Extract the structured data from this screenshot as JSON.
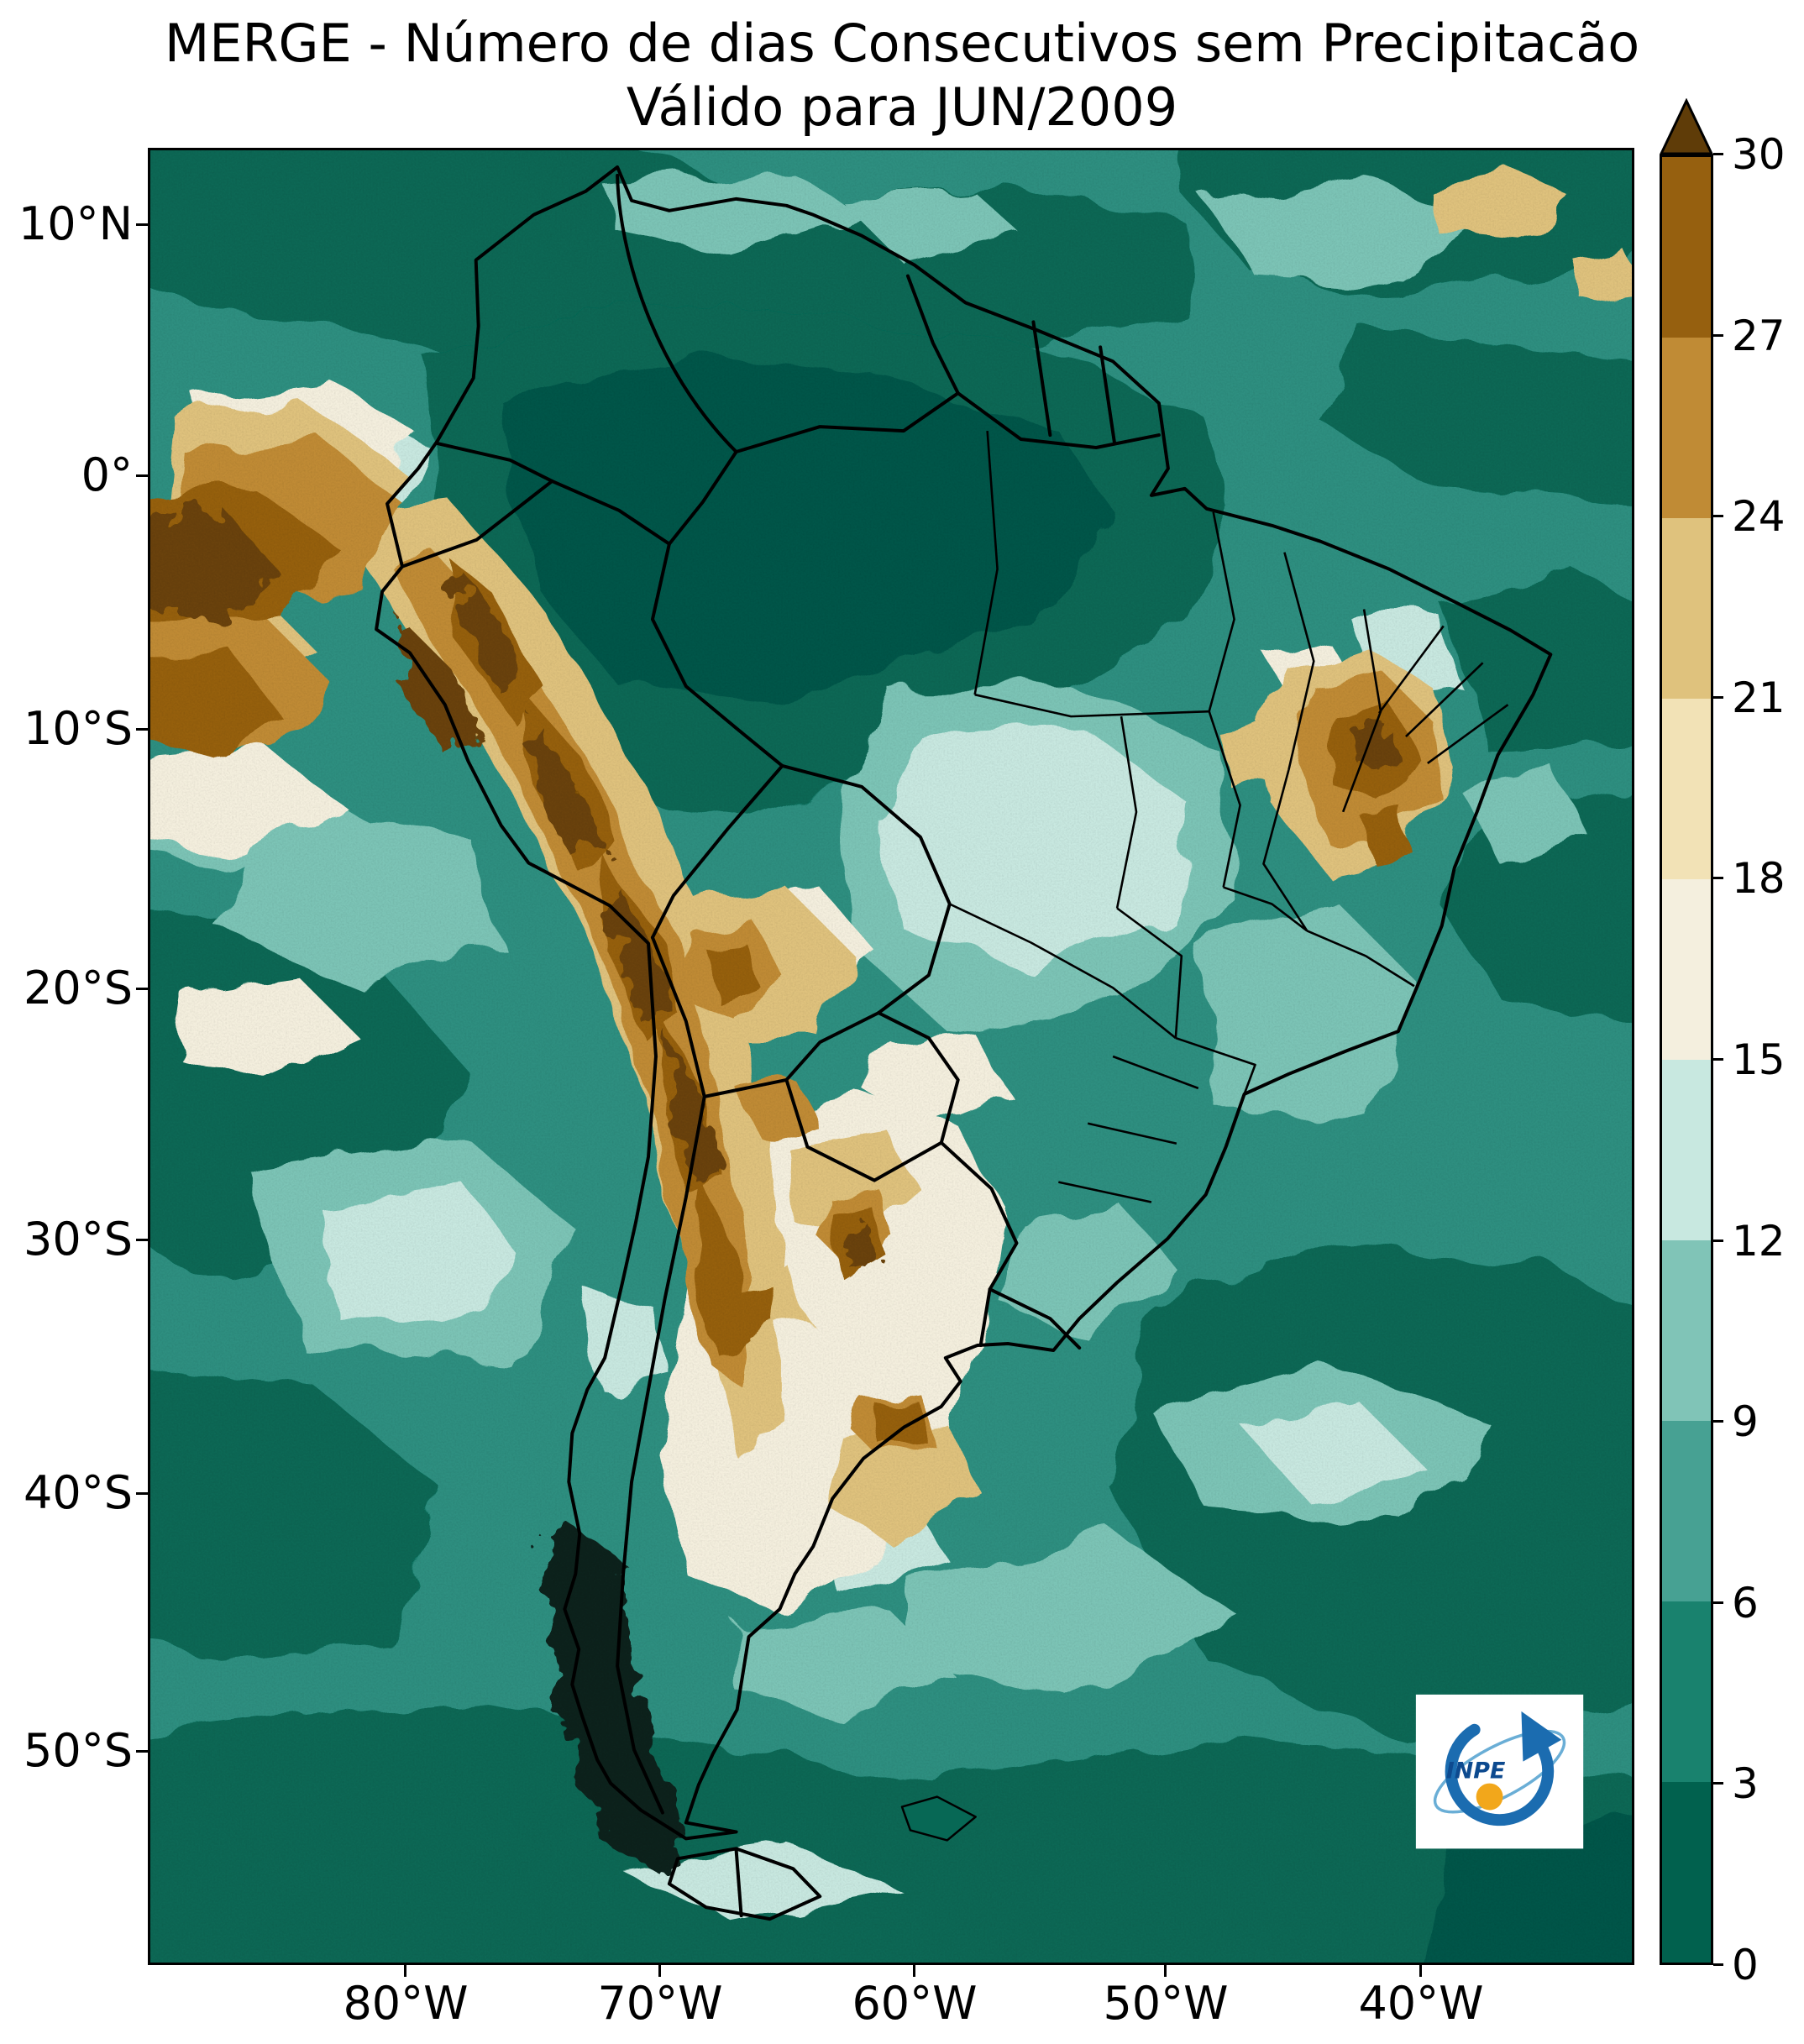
{
  "title": {
    "line1": "MERGE - Número de dias Consecutivos sem Precipitacão",
    "line2": "Válido para JUN/2009"
  },
  "axes": {
    "lat_ticks": [
      "10°N",
      "0°",
      "10°S",
      "20°S",
      "30°S",
      "40°S",
      "50°S"
    ],
    "lon_ticks": [
      "80°W",
      "70°W",
      "60°W",
      "50°W",
      "40°W"
    ]
  },
  "colorbar": {
    "tick_labels": [
      "0",
      "3",
      "6",
      "9",
      "12",
      "15",
      "18",
      "21",
      "24",
      "27",
      "30"
    ],
    "segment_colors": [
      "#01614e",
      "#19826e",
      "#47a193",
      "#80c4b7",
      "#c8e8e0",
      "#f4efde",
      "#f2e2b6",
      "#dfc27d",
      "#c08b35",
      "#96600f"
    ],
    "over_color": "#5f3c08",
    "extend": "max",
    "orientation": "vertical"
  },
  "palette": {
    "ocean_base": "#2e8f80",
    "teal_dark": "#076855",
    "teal_darkest": "#00564a",
    "teal_light": "#7cc4b6",
    "cyan_pale": "#c8e8e0",
    "cream": "#f4efde",
    "tan_light": "#f0dfb2",
    "tan": "#dfc27d",
    "brown_light": "#c08b35",
    "brown": "#96600f",
    "brown_dark": "#6b4307",
    "near_black": "#0c241e",
    "border_black": "#000000"
  },
  "logo": {
    "text": "INPE",
    "blue": "#1b6cb0",
    "dark_blue": "#0d4a8f",
    "light_blue": "#6aaed6",
    "orange": "#f2a71b"
  },
  "chart_data": {
    "type": "heatmap",
    "title": "MERGE - Número de dias Consecutivos sem Precipitacão",
    "subtitle": "Válido para JUN/2009",
    "variable": "Número de dias consecutivos sem precipitacão",
    "colorbar": {
      "min": 0,
      "max": 30,
      "step": 3,
      "ticks": [
        0,
        3,
        6,
        9,
        12,
        15,
        18,
        21,
        24,
        27,
        30
      ],
      "extend_max": true
    },
    "x_axis": {
      "tick_labels": [
        "80°W",
        "70°W",
        "60°W",
        "50°W",
        "40°W"
      ],
      "approx_range_deg_west": [
        90,
        31.5
      ]
    },
    "y_axis": {
      "tick_labels": [
        "10°N",
        "0°",
        "10°S",
        "20°S",
        "30°S",
        "40°S",
        "50°S"
      ],
      "approx_range_deg_lat": [
        13,
        -58.5
      ]
    },
    "regions_approx_values_days": [
      {
        "region": "Amazon basin / northern Brazil",
        "value": "0-6"
      },
      {
        "region": "Andes, coastal Peru and Atacama (Chile/Bolivia)",
        "value": "24-30+"
      },
      {
        "region": "Pacific ocean west of Peru (top-left)",
        "value": "18-30+"
      },
      {
        "region": "Interior NE Brazil (Bahia region)",
        "value": "21-30"
      },
      {
        "region": "Central Argentina / Pampas",
        "value": "15-30"
      },
      {
        "region": "Central Brazil (Mato Grosso / Goiás)",
        "value": "12-18"
      },
      {
        "region": "Southern Chile",
        "value": "0-3"
      },
      {
        "region": "Open oceans",
        "value": "0-15"
      }
    ]
  }
}
